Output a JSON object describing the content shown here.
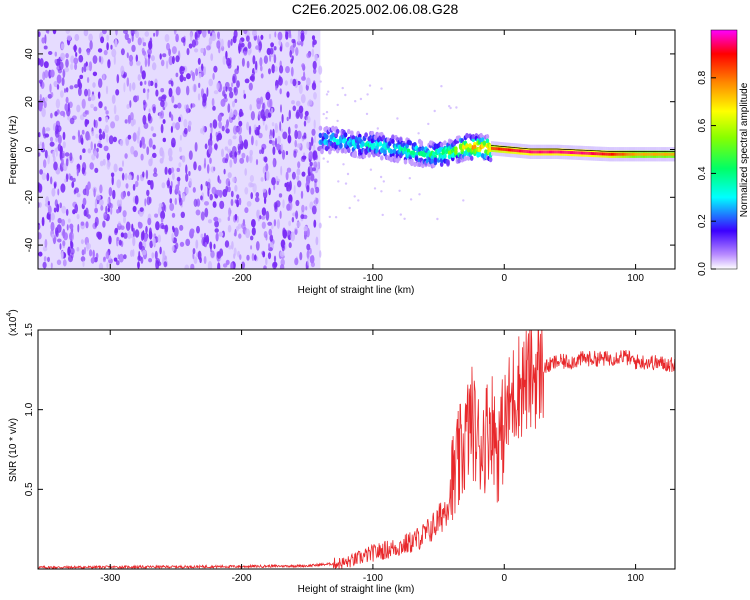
{
  "title": "C2E6.2025.002.06.08.G28",
  "chart_data": [
    {
      "type": "heatmap",
      "xlabel": "Height of straight line (km)",
      "ylabel": "Frequency (Hz)",
      "xlim": [
        -355,
        130
      ],
      "ylim": [
        -50,
        50
      ],
      "xticks": [
        -300,
        -200,
        -100,
        0,
        100
      ],
      "yticks": [
        -40,
        -20,
        0,
        20,
        40
      ],
      "colorbar": {
        "label": "Normalized spectral amplitude",
        "range": [
          0,
          1
        ],
        "ticks": [
          "0.0",
          "0.2",
          "0.4",
          "0.6",
          "0.8"
        ],
        "colors": [
          "#ffffff",
          "#9b30ff",
          "#0000ff",
          "#00ffff",
          "#00ff00",
          "#ffff00",
          "#ff0000",
          "#ff00ff"
        ]
      },
      "noise_region": {
        "x": [
          -355,
          -140
        ],
        "freq": [
          -50,
          50
        ],
        "amplitude": 0.1
      },
      "ridge": {
        "x": [
          -140,
          -130,
          -120,
          -110,
          -100,
          -90,
          -80,
          -70,
          -60,
          -50,
          -40,
          -30,
          -20,
          -10,
          0,
          20,
          40,
          60,
          80,
          100,
          130
        ],
        "freq": [
          4,
          4,
          3,
          2,
          2,
          1,
          0,
          -1,
          -2,
          -2,
          -1,
          1,
          1,
          0.5,
          0,
          -1,
          -1,
          -1.5,
          -2,
          -2,
          -2
        ],
        "amplitude": [
          0.25,
          0.3,
          0.3,
          0.3,
          0.35,
          0.35,
          0.35,
          0.4,
          0.4,
          0.45,
          0.5,
          0.7,
          0.8,
          0.85,
          0.9,
          0.95,
          0.95,
          0.95,
          0.9,
          0.75,
          0.75
        ]
      }
    },
    {
      "type": "line",
      "xlabel": "Height of straight line (km)",
      "ylabel": "SNR (10 * v/v)",
      "yscale_label": "(x10",
      "yscale_exp": "4",
      "xlim": [
        -355,
        130
      ],
      "ylim": [
        0,
        1.5
      ],
      "xticks": [
        -300,
        -200,
        -100,
        0,
        100
      ],
      "yticks": [
        "0.5",
        "1.0",
        "1.5"
      ],
      "color": "#e8282b",
      "series": [
        {
          "x": [
            -355,
            -300,
            -250,
            -200,
            -150,
            -120,
            -100,
            -90,
            -80,
            -70,
            -60,
            -50,
            -45,
            -40,
            -35,
            -30,
            -25,
            -20,
            -15,
            -10,
            -5,
            0,
            5,
            10,
            20,
            30,
            40,
            50,
            60,
            80,
            90,
            100,
            110,
            120,
            130
          ],
          "y": [
            0.01,
            0.012,
            0.014,
            0.016,
            0.02,
            0.04,
            0.1,
            0.12,
            0.14,
            0.17,
            0.22,
            0.3,
            0.38,
            0.5,
            0.65,
            0.8,
            0.95,
            0.78,
            0.82,
            0.95,
            0.75,
            0.9,
            1.05,
            1.15,
            1.2,
            1.26,
            1.3,
            1.3,
            1.32,
            1.32,
            1.34,
            1.3,
            1.3,
            1.29,
            1.28
          ]
        }
      ]
    }
  ]
}
